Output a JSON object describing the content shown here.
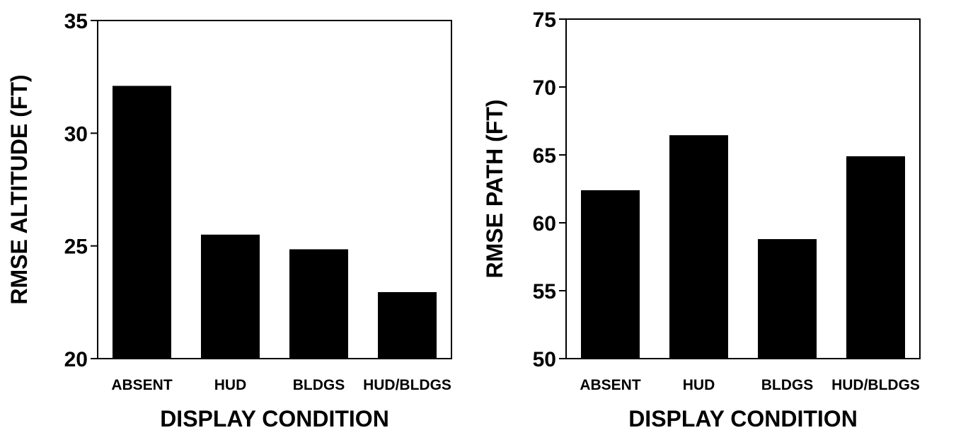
{
  "chart_data": [
    {
      "type": "bar",
      "title": "",
      "categories": [
        "ABSENT",
        "HUD",
        "BLDGS",
        "HUD/BLDGS"
      ],
      "values": [
        32.1,
        25.5,
        24.85,
        22.95
      ],
      "xlabel": "DISPLAY CONDITION",
      "ylabel": "RMSE ALTITUDE (FT)",
      "ylim": [
        20,
        35
      ],
      "yticks": [
        20,
        25,
        30,
        35
      ],
      "grid": false,
      "color": "#000000"
    },
    {
      "type": "bar",
      "title": "",
      "categories": [
        "ABSENT",
        "HUD",
        "BLDGS",
        "HUD/BLDGS"
      ],
      "values": [
        62.4,
        66.45,
        58.8,
        64.9
      ],
      "xlabel": "DISPLAY CONDITION",
      "ylabel": "RMSE PATH (FT)",
      "ylim": [
        50,
        75
      ],
      "yticks": [
        50,
        55,
        60,
        65,
        70,
        75
      ],
      "grid": false,
      "color": "#000000"
    }
  ]
}
